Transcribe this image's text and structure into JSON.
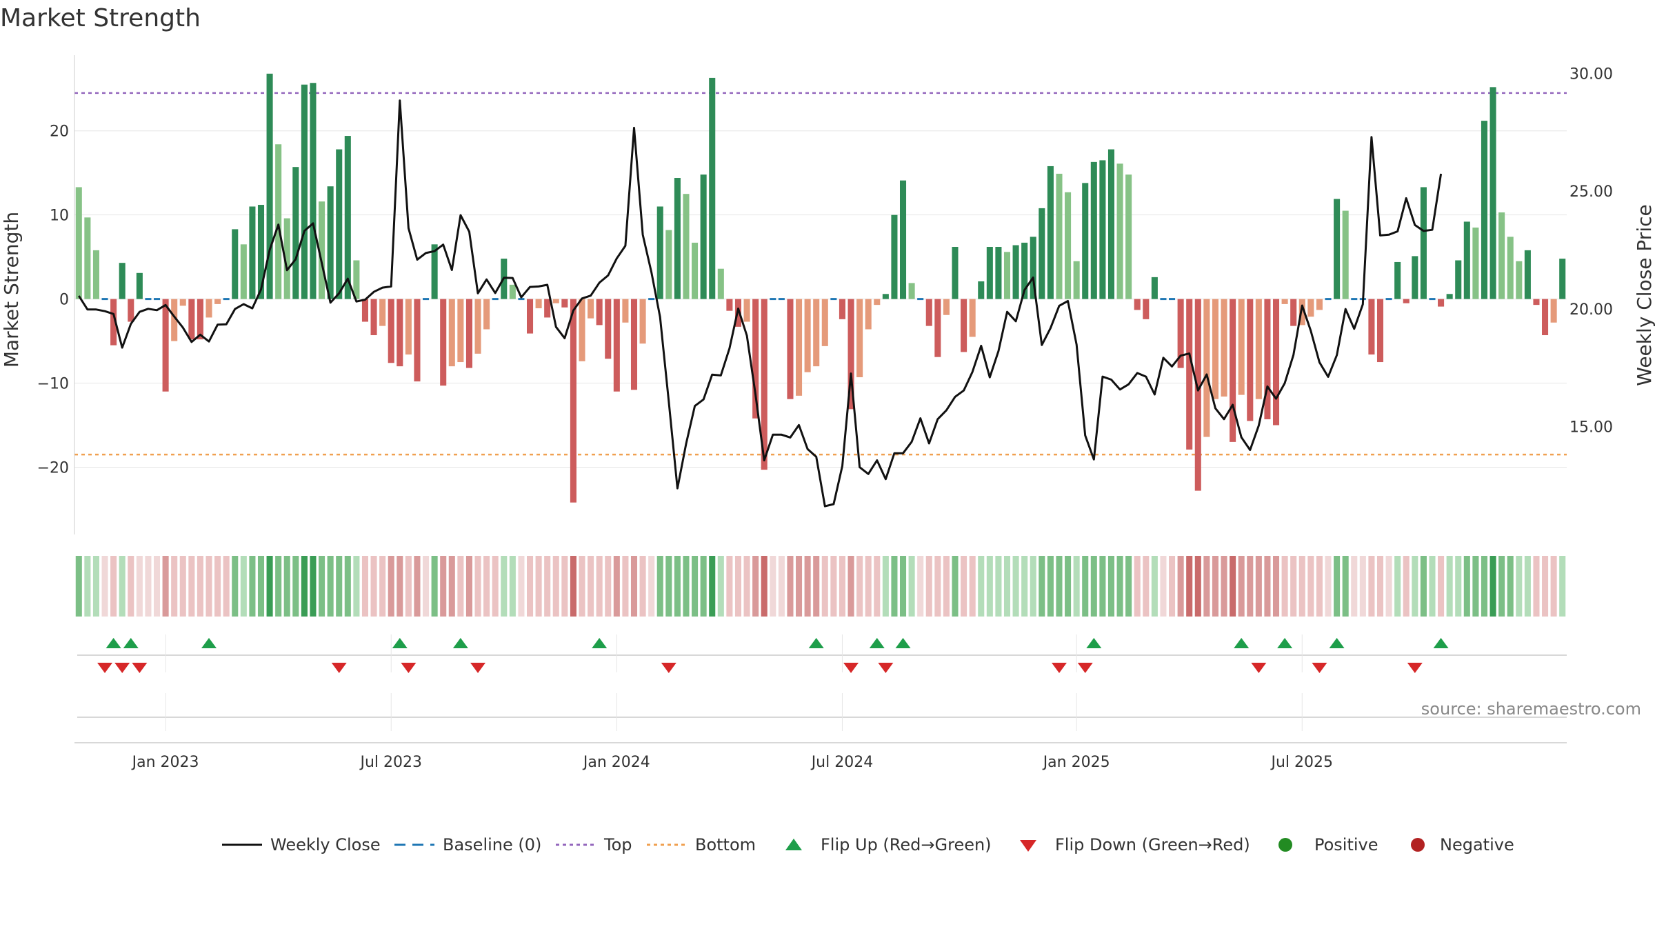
{
  "title": "Market Strength",
  "source_text": "source: sharemaestro.com",
  "colors": {
    "strong_pos": "#2e8b57",
    "weak_pos": "#86c286",
    "strong_neg": "#cd5c5c",
    "weak_neg": "#e59a7a",
    "close_line": "#111111",
    "baseline": "#1f77b4",
    "top": "#9467bd",
    "bottom": "#f0a050",
    "flip_up": "#1e9e4a",
    "flip_down": "#d62728",
    "positive": "#228b22",
    "negative": "#b22222"
  },
  "chart_data": {
    "type": "bar+line",
    "title": "Market Strength",
    "ylabel": "Market Strength",
    "y2label": "Weekly Close Price",
    "ylim": [
      -28,
      29
    ],
    "y2lim": [
      10.41,
      30.78
    ],
    "yticks": [
      -20,
      -10,
      0,
      10,
      20
    ],
    "y2ticks": [
      15.0,
      20.0,
      25.0,
      30.0
    ],
    "ytick_labels": [
      "−20",
      "−10",
      "0",
      "10",
      "20"
    ],
    "y2tick_labels": [
      "15.00",
      "20.00",
      "25.00",
      "30.00"
    ],
    "top_level": 24.5,
    "bottom_level": -18.5,
    "start_date": "2022-10-24",
    "x_ticks": [
      {
        "date": "2023-01-02",
        "label": "Jan 2023"
      },
      {
        "date": "2023-07-03",
        "label": "Jul 2023"
      },
      {
        "date": "2024-01-01",
        "label": "Jan 2024"
      },
      {
        "date": "2024-07-01",
        "label": "Jul 2024"
      },
      {
        "date": "2025-01-06",
        "label": "Jan 2025"
      },
      {
        "date": "2025-07-07",
        "label": "Jul 2025"
      }
    ],
    "strength": [
      13.3,
      9.7,
      5.8,
      0,
      -5.5,
      4.3,
      -2.7,
      3.1,
      0,
      0,
      -11.0,
      -5.0,
      -0.8,
      -4.8,
      -4.8,
      -2.2,
      -0.6,
      0,
      8.3,
      6.5,
      11.0,
      11.2,
      26.8,
      18.4,
      9.6,
      15.7,
      25.5,
      25.7,
      11.6,
      13.4,
      17.8,
      19.4,
      4.6,
      -2.7,
      -4.3,
      -3.2,
      -7.6,
      -8.0,
      -6.6,
      -9.8,
      0,
      6.5,
      -10.3,
      -8.0,
      -7.5,
      -8.2,
      -6.5,
      -3.6,
      0,
      4.8,
      1.7,
      0,
      -4.1,
      -1.1,
      -2.2,
      -0.5,
      -1.0,
      -24.2,
      -7.4,
      -2.3,
      -3.1,
      -7.1,
      -11.0,
      -2.8,
      -10.8,
      -5.3,
      0,
      11.0,
      8.2,
      14.4,
      12.5,
      6.7,
      14.8,
      26.3,
      3.6,
      -1.4,
      -3.3,
      -2.7,
      -14.2,
      -20.3,
      0,
      0,
      -11.9,
      -11.5,
      -8.7,
      -8.0,
      -5.6,
      0,
      -2.4,
      -13.1,
      -9.3,
      -3.6,
      -0.7,
      0.6,
      10.0,
      14.1,
      1.9,
      0,
      -3.2,
      -6.9,
      -1.9,
      6.2,
      -6.3,
      -4.5,
      2.1,
      6.2,
      6.2,
      5.6,
      6.4,
      6.7,
      7.4,
      10.8,
      15.8,
      14.9,
      12.7,
      4.5,
      13.8,
      16.3,
      16.5,
      17.8,
      16.1,
      14.8,
      -1.3,
      -2.4,
      2.6,
      0,
      0,
      -8.2,
      -17.9,
      -22.8,
      -16.4,
      -11.9,
      -11.6,
      -17.0,
      -11.4,
      -14.5,
      -11.9,
      -14.3,
      -15.0,
      -0.6,
      -3.2,
      -3.1,
      -2.1,
      -1.3,
      0,
      11.9,
      10.5,
      0,
      0,
      -6.6,
      -7.5,
      0,
      4.4,
      -0.5,
      5.1,
      13.3,
      0,
      -0.9,
      0.6,
      4.6,
      9.2,
      8.5,
      21.2,
      25.2,
      10.3,
      7.4,
      4.5,
      5.8,
      -0.7,
      -4.3,
      -2.8,
      4.8
    ],
    "close": [
      20.55,
      19.97,
      19.97,
      19.9,
      19.78,
      18.35,
      19.36,
      19.87,
      20.0,
      19.94,
      20.16,
      19.67,
      19.2,
      18.59,
      18.9,
      18.61,
      19.33,
      19.34,
      19.99,
      20.2,
      20.02,
      20.82,
      22.51,
      23.58,
      21.64,
      22.11,
      23.31,
      23.63,
      21.95,
      20.26,
      20.66,
      21.28,
      20.31,
      20.39,
      20.72,
      20.9,
      20.95,
      28.85,
      23.43,
      22.09,
      22.37,
      22.45,
      22.73,
      21.65,
      23.98,
      23.28,
      20.66,
      21.25,
      20.67,
      21.32,
      21.31,
      20.49,
      20.93,
      20.95,
      21.02,
      19.23,
      18.75,
      19.93,
      20.44,
      20.56,
      21.11,
      21.42,
      22.14,
      22.68,
      27.69,
      23.15,
      21.55,
      19.65,
      16.07,
      12.37,
      14.27,
      15.87,
      16.15,
      17.2,
      17.17,
      18.32,
      20.01,
      18.86,
      16.36,
      13.56,
      14.65,
      14.65,
      14.53,
      15.06,
      14.04,
      13.71,
      11.61,
      11.7,
      13.32,
      17.25,
      13.27,
      12.98,
      13.56,
      12.76,
      13.86,
      13.86,
      14.35,
      15.35,
      14.28,
      15.31,
      15.69,
      16.26,
      16.53,
      17.32,
      18.43,
      17.09,
      18.2,
      19.87,
      19.47,
      20.8,
      21.33,
      18.46,
      19.18,
      20.13,
      20.33,
      18.48,
      14.62,
      13.6,
      17.12,
      16.99,
      16.57,
      16.79,
      17.27,
      17.12,
      16.36,
      17.92,
      17.55,
      18.01,
      18.1,
      16.53,
      17.21,
      15.77,
      15.31,
      15.92,
      14.54,
      14.0,
      15.04,
      16.7,
      16.18,
      16.84,
      18.04,
      20.14,
      19.07,
      17.73,
      17.11,
      18.03,
      19.99,
      19.15,
      20.19,
      27.3,
      23.12,
      23.15,
      23.29,
      24.7,
      23.56,
      23.31,
      23.36,
      25.74
    ],
    "signal_strip": [
      2,
      1,
      1,
      0,
      -1,
      1,
      -1,
      0,
      0,
      0,
      -2,
      -1,
      -1,
      -1,
      -1,
      -1,
      -1,
      -1,
      2,
      1,
      2,
      2,
      3,
      2,
      2,
      2,
      3,
      3,
      2,
      2,
      2,
      2,
      1,
      -1,
      -1,
      -1,
      -2,
      -2,
      -1,
      -2,
      0,
      2,
      -2,
      -2,
      -1,
      -2,
      -1,
      -1,
      -1,
      1,
      1,
      0,
      -1,
      -1,
      -1,
      -1,
      -1,
      -3,
      -1,
      -1,
      -1,
      -1,
      -2,
      -1,
      -2,
      -1,
      0,
      2,
      2,
      2,
      2,
      2,
      2,
      3,
      1,
      -1,
      -1,
      -1,
      -2,
      -3,
      0,
      0,
      -2,
      -2,
      -2,
      -2,
      -1,
      -1,
      -1,
      -2,
      -1,
      -1,
      -1,
      1,
      2,
      2,
      1,
      0,
      -1,
      -1,
      -1,
      2,
      -1,
      -1,
      1,
      1,
      1,
      1,
      1,
      1,
      1,
      2,
      2,
      2,
      2,
      1,
      2,
      2,
      2,
      2,
      2,
      2,
      -1,
      -1,
      1,
      0,
      -1,
      -2,
      -3,
      -3,
      -2,
      -2,
      -2,
      -3,
      -2,
      -2,
      -2,
      -2,
      -2,
      -1,
      -1,
      -1,
      -1,
      -1,
      0,
      2,
      2,
      0,
      0,
      -1,
      -1,
      0,
      1,
      -1,
      1,
      2,
      1,
      -1,
      1,
      1,
      2,
      2,
      2,
      3,
      2,
      2,
      1,
      1,
      -1,
      -1,
      -1,
      1
    ],
    "flip_up": [
      4,
      6,
      15,
      37,
      44,
      60,
      85,
      92,
      95,
      117,
      134,
      139,
      145,
      157
    ],
    "flip_down": [
      3,
      5,
      7,
      30,
      38,
      46,
      68,
      89,
      93,
      113,
      116,
      136,
      143,
      154
    ]
  },
  "legend": [
    {
      "key": "close",
      "label": "Weekly Close"
    },
    {
      "key": "baseline",
      "label": "Baseline (0)"
    },
    {
      "key": "top",
      "label": "Top"
    },
    {
      "key": "bottom",
      "label": "Bottom"
    },
    {
      "key": "flip_up",
      "label": "Flip Up (Red→Green)"
    },
    {
      "key": "flip_down",
      "label": "Flip Down (Green→Red)"
    },
    {
      "key": "positive",
      "label": "Positive"
    },
    {
      "key": "negative",
      "label": "Negative"
    }
  ]
}
